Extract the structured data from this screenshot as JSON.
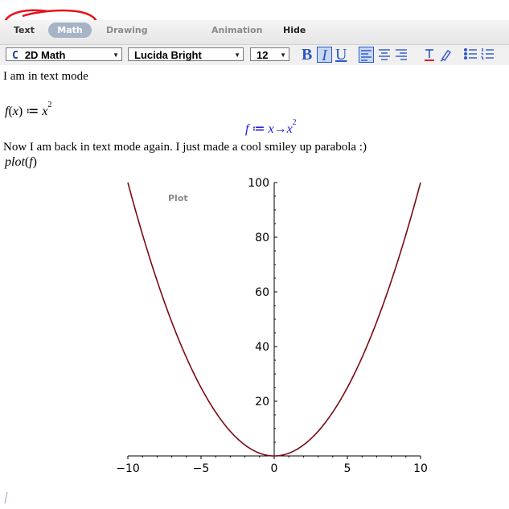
{
  "mode_tabs": {
    "text": "Text",
    "math": "Math",
    "drawing": "Drawing",
    "plot": "Plot",
    "animation": "Animation",
    "hide": "Hide",
    "active": "Math",
    "annotation_color": "#e8141b"
  },
  "format_toolbar": {
    "style_value": "2D Math",
    "style_glyph": "C",
    "font_value": "Lucida Bright",
    "size_value": "12",
    "bold": "B",
    "italic": "I",
    "underline": "U",
    "italic_active": true,
    "align_left_active": true,
    "accent_color": "#2b55c9",
    "icons": [
      "bold-icon",
      "italic-icon",
      "underline-icon",
      "align-left-icon",
      "align-center-icon",
      "align-right-icon",
      "text-color-icon",
      "highlight-color-icon",
      "bullet-list-icon",
      "numbered-list-icon"
    ]
  },
  "document": {
    "text_line_1": "I am in text mode",
    "math_input": {
      "lhs_func": "f",
      "lhs_var": "x",
      "assign": "≔",
      "base": "x",
      "exponent": "2"
    },
    "math_output": {
      "name": "f",
      "assign": "≔",
      "var": "x",
      "arrow": "→",
      "base": "x",
      "exponent": "2",
      "color": "#1b1bd8"
    },
    "text_line_2": "Now I am back in text mode again.  I just made a cool smiley up parabola :)",
    "plot_command": {
      "func": "plot",
      "arg": "f"
    }
  },
  "chart_data": {
    "type": "line",
    "function": "x^2",
    "x": [
      -10,
      -9,
      -8,
      -7,
      -6,
      -5,
      -4,
      -3,
      -2,
      -1,
      0,
      1,
      2,
      3,
      4,
      5,
      6,
      7,
      8,
      9,
      10
    ],
    "y": [
      100,
      81,
      64,
      49,
      36,
      25,
      16,
      9,
      4,
      1,
      0,
      1,
      4,
      9,
      16,
      25,
      36,
      49,
      64,
      81,
      100
    ],
    "xlim": [
      -10,
      10
    ],
    "ylim": [
      0,
      100
    ],
    "x_ticks": [
      "-10",
      "-5",
      "0",
      "5",
      "10"
    ],
    "y_ticks": [
      "20",
      "40",
      "60",
      "80",
      "100"
    ],
    "line_color": "#7a0a14",
    "title": "",
    "xlabel": "",
    "ylabel": "",
    "grid": false
  }
}
